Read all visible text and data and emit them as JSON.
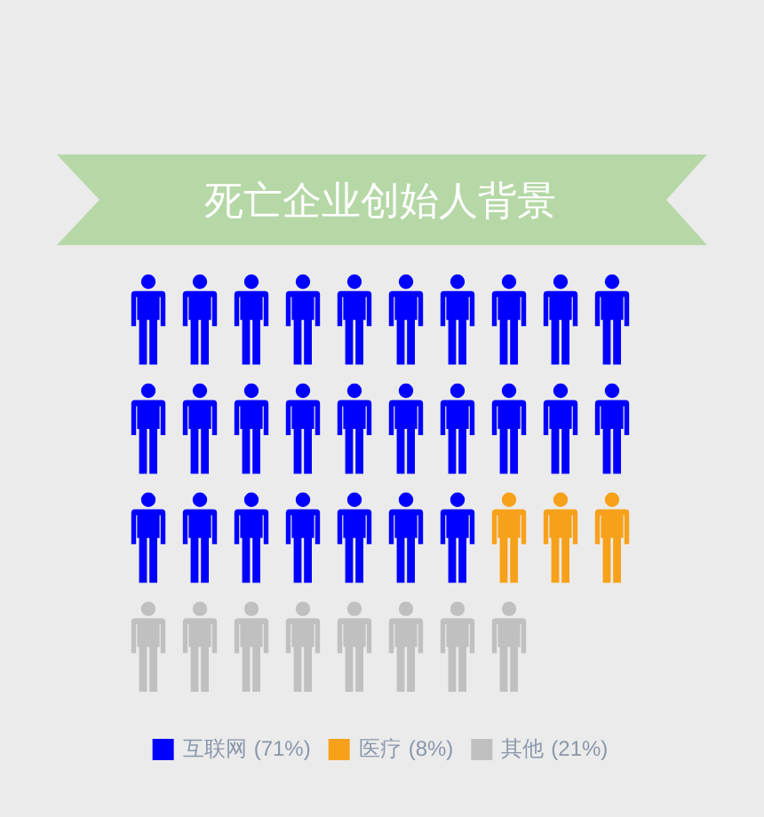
{
  "chart_data": {
    "type": "other",
    "title": "死亡企业创始人背景",
    "series": [
      {
        "name": "互联网",
        "color": "#0000ff",
        "values": [
          71
        ],
        "value_labels": [
          "(71%)"
        ]
      },
      {
        "name": "医疗",
        "color": "#f7a11a",
        "values": [
          8
        ],
        "value_labels": [
          "(8%)"
        ]
      },
      {
        "name": "其他",
        "color": "#c0c0c0",
        "values": [
          21
        ],
        "value_labels": [
          "(21%)"
        ]
      }
    ],
    "legend": "bottom"
  }
}
